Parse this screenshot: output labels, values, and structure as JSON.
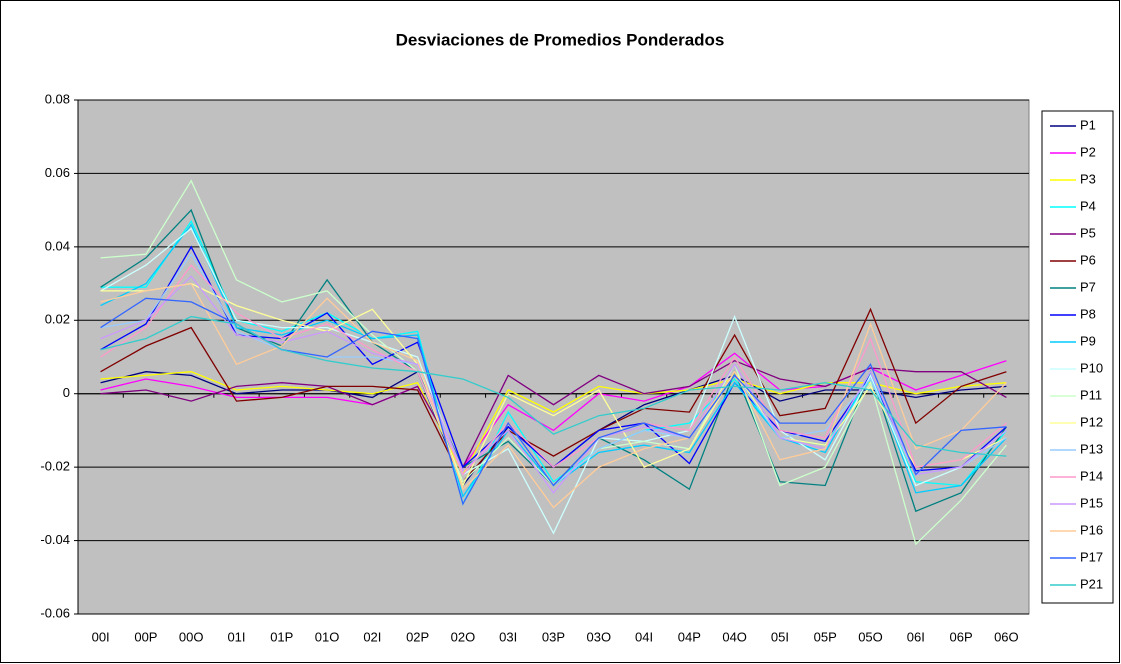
{
  "chart_data": {
    "type": "line",
    "title": "Desviaciones de Promedios Ponderados",
    "categories": [
      "00I",
      "00P",
      "00O",
      "01I",
      "01P",
      "01O",
      "02I",
      "02P",
      "02O",
      "03I",
      "03P",
      "03O",
      "04I",
      "04P",
      "04O",
      "05I",
      "05P",
      "05O",
      "06I",
      "06P",
      "06O"
    ],
    "ylim": [
      -0.06,
      0.08
    ],
    "yticks": [
      -0.06,
      -0.04,
      -0.02,
      0,
      0.02,
      0.04,
      0.06,
      0.08
    ],
    "grid": true,
    "legend": "right",
    "series": [
      {
        "name": "P1",
        "color": "#000080",
        "values": [
          0.003,
          0.006,
          0.005,
          0.0,
          0.001,
          0.001,
          -0.001,
          0.006,
          -0.025,
          -0.009,
          -0.02,
          -0.01,
          -0.003,
          0.001,
          0.005,
          -0.002,
          0.001,
          0.001,
          -0.001,
          0.001,
          0.002
        ]
      },
      {
        "name": "P2",
        "color": "#FF00FF",
        "values": [
          0.001,
          0.004,
          0.002,
          -0.001,
          -0.001,
          -0.001,
          -0.003,
          0.002,
          -0.02,
          -0.003,
          -0.01,
          0.0,
          -0.002,
          0.002,
          0.011,
          0.001,
          0.002,
          0.007,
          0.001,
          0.005,
          0.009
        ]
      },
      {
        "name": "P3",
        "color": "#FFFF00",
        "values": [
          0.004,
          0.005,
          0.006,
          0.001,
          0.002,
          0.001,
          0.0,
          0.003,
          -0.022,
          0.001,
          -0.005,
          0.002,
          0.0,
          0.001,
          0.004,
          0.0,
          0.003,
          0.003,
          0.0,
          0.002,
          0.003
        ]
      },
      {
        "name": "P4",
        "color": "#00FFFF",
        "values": [
          0.029,
          0.029,
          0.047,
          0.02,
          0.017,
          0.022,
          0.015,
          0.017,
          -0.03,
          -0.005,
          -0.024,
          -0.015,
          -0.01,
          -0.008,
          0.004,
          -0.012,
          -0.014,
          0.004,
          -0.024,
          -0.025,
          -0.01
        ]
      },
      {
        "name": "P5",
        "color": "#800080",
        "values": [
          0.0,
          0.001,
          -0.002,
          0.002,
          0.003,
          0.002,
          -0.003,
          0.002,
          -0.02,
          0.005,
          -0.003,
          0.005,
          0.0,
          0.002,
          0.009,
          0.004,
          0.002,
          0.007,
          0.006,
          0.006,
          -0.001
        ]
      },
      {
        "name": "P6",
        "color": "#800000",
        "values": [
          0.006,
          0.013,
          0.018,
          -0.002,
          -0.001,
          0.002,
          0.002,
          0.001,
          -0.024,
          -0.01,
          -0.017,
          -0.01,
          -0.004,
          -0.005,
          0.016,
          -0.006,
          -0.004,
          0.023,
          -0.008,
          0.002,
          0.006
        ]
      },
      {
        "name": "P7",
        "color": "#008080",
        "values": [
          0.029,
          0.037,
          0.05,
          0.018,
          0.013,
          0.031,
          0.014,
          0.006,
          -0.02,
          -0.013,
          -0.025,
          -0.012,
          -0.018,
          -0.026,
          0.006,
          -0.024,
          -0.025,
          0.006,
          -0.032,
          -0.027,
          -0.009
        ]
      },
      {
        "name": "P8",
        "color": "#0000FF",
        "values": [
          0.012,
          0.019,
          0.04,
          0.016,
          0.015,
          0.022,
          0.008,
          0.014,
          -0.02,
          -0.009,
          -0.02,
          -0.01,
          -0.008,
          -0.019,
          0.003,
          -0.01,
          -0.013,
          0.005,
          -0.021,
          -0.02,
          -0.009
        ]
      },
      {
        "name": "P9",
        "color": "#00CCFF",
        "values": [
          0.024,
          0.03,
          0.046,
          0.018,
          0.016,
          0.02,
          0.015,
          0.016,
          -0.028,
          -0.01,
          -0.025,
          -0.016,
          -0.014,
          -0.016,
          0.003,
          -0.012,
          -0.016,
          0.006,
          -0.027,
          -0.025,
          -0.012
        ]
      },
      {
        "name": "P10",
        "color": "#CCFFFF",
        "values": [
          0.028,
          0.035,
          0.045,
          0.02,
          0.018,
          0.018,
          0.014,
          0.01,
          -0.022,
          -0.015,
          -0.038,
          -0.012,
          -0.013,
          -0.01,
          0.021,
          -0.01,
          -0.018,
          0.005,
          -0.025,
          -0.02,
          -0.01
        ]
      },
      {
        "name": "P11",
        "color": "#CCFFCC",
        "values": [
          0.037,
          0.038,
          0.058,
          0.031,
          0.025,
          0.028,
          0.016,
          0.006,
          -0.024,
          -0.012,
          -0.025,
          -0.015,
          -0.013,
          -0.015,
          0.008,
          -0.025,
          -0.02,
          0.003,
          -0.041,
          -0.029,
          -0.014
        ]
      },
      {
        "name": "P12",
        "color": "#FFFF99",
        "values": [
          0.028,
          0.028,
          0.03,
          0.024,
          0.02,
          0.017,
          0.023,
          0.008,
          -0.025,
          0.0,
          -0.006,
          0.001,
          -0.02,
          -0.015,
          0.006,
          -0.012,
          -0.014,
          0.002,
          -0.02,
          -0.018,
          -0.012
        ]
      },
      {
        "name": "P13",
        "color": "#99CCFF",
        "values": [
          0.018,
          0.02,
          0.038,
          0.017,
          0.012,
          0.01,
          0.01,
          0.008,
          -0.022,
          -0.008,
          -0.025,
          -0.015,
          -0.01,
          -0.012,
          0.005,
          -0.012,
          -0.01,
          0.004,
          -0.022,
          -0.02,
          -0.012
        ]
      },
      {
        "name": "P14",
        "color": "#FF99CC",
        "values": [
          0.01,
          0.018,
          0.035,
          0.022,
          0.015,
          0.019,
          0.012,
          0.006,
          -0.022,
          -0.008,
          -0.02,
          -0.012,
          -0.008,
          -0.01,
          0.01,
          -0.01,
          -0.012,
          0.015,
          -0.02,
          -0.018,
          -0.008
        ]
      },
      {
        "name": "P15",
        "color": "#CC99FF",
        "values": [
          0.015,
          0.02,
          0.032,
          0.016,
          0.014,
          0.017,
          0.011,
          0.008,
          -0.021,
          -0.01,
          -0.027,
          -0.012,
          -0.009,
          -0.012,
          0.008,
          -0.012,
          -0.015,
          0.006,
          -0.022,
          -0.02,
          -0.01
        ]
      },
      {
        "name": "P16",
        "color": "#FFCC99",
        "values": [
          0.025,
          0.028,
          0.03,
          0.008,
          0.013,
          0.026,
          0.014,
          0.009,
          -0.026,
          -0.014,
          -0.031,
          -0.02,
          -0.015,
          -0.012,
          0.006,
          -0.018,
          -0.015,
          0.019,
          -0.015,
          -0.01,
          0.003
        ]
      },
      {
        "name": "P17",
        "color": "#3366FF",
        "values": [
          0.018,
          0.026,
          0.025,
          0.019,
          0.012,
          0.01,
          0.017,
          0.015,
          -0.03,
          -0.008,
          -0.025,
          -0.012,
          -0.008,
          -0.012,
          0.005,
          -0.008,
          -0.008,
          0.008,
          -0.022,
          -0.01,
          -0.009
        ]
      },
      {
        "name": "P21",
        "color": "#33CCCC",
        "values": [
          0.012,
          0.015,
          0.021,
          0.019,
          0.012,
          0.009,
          0.007,
          0.006,
          0.004,
          -0.001,
          -0.011,
          -0.006,
          -0.004,
          0.001,
          0.002,
          0.001,
          0.003,
          0.001,
          -0.014,
          -0.016,
          -0.017
        ]
      }
    ]
  }
}
